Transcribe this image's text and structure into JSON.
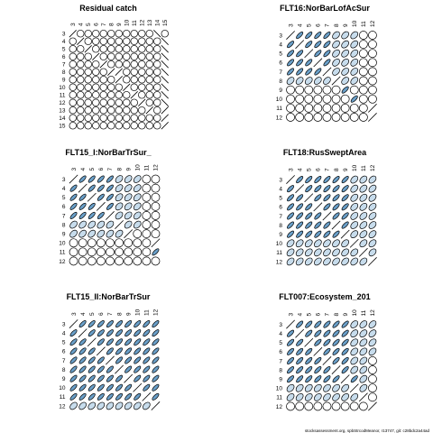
{
  "footer": "stocksassessment.org, spbStrcodMeanor, r13747, git: c28bdc2a44ad",
  "colors": {
    "positive_fill": "#6a9fc8",
    "light_fill": "#c7dcec",
    "empty_fill": "#ffffff",
    "stroke": "#000000"
  },
  "chart_data": [
    {
      "type": "heatmap",
      "title": "Residual catch",
      "categories": [
        "3",
        "4",
        "5",
        "6",
        "7",
        "8",
        "9",
        "10",
        "11",
        "12",
        "13",
        "14",
        "15"
      ],
      "rows": [
        "/..........^.",
        "./..........^",
        "../.........^",
        ".../........^",
        "..../.......^",
        ".....//.....^",
        "....../.....^",
        "......./....^",
        "......../...^",
        "........./..^",
        ".........././",
        "............/",
        "............/"
      ]
    },
    {
      "type": "heatmap",
      "title": "FLT16:NorBarLofAcSur",
      "categories": [
        "3",
        "4",
        "5",
        "6",
        "7",
        "8",
        "9",
        "10",
        "11",
        "12"
      ],
      "rows": [
        "/AAAABBB..",
        "A/AAABBB..",
        "AA/AABBB..",
        "AAA/ABBB..",
        "AAAA/BBB..",
        "BBBBB/BB..",
        "......A...",
        ".......A..",
        "........./",
        "........./"
      ]
    },
    {
      "type": "heatmap",
      "title": "FLT15_I:NorBarTrSur_",
      "categories": [
        "3",
        "4",
        "5",
        "6",
        "7",
        "8",
        "9",
        "10",
        "11",
        "12"
      ],
      "rows": [
        "/AAAABBB..",
        "A/AAABBB..",
        "AA/AABBB..",
        "AAA/ABBB..",
        "AAAA/BBB..",
        "BBBBB/BB..",
        "BBBBBB/...",
        "........./",
        ".........A",
        ".........."
      ]
    },
    {
      "type": "heatmap",
      "title": "FLT18:RusSweptArea",
      "categories": [
        "3",
        "4",
        "5",
        "6",
        "7",
        "8",
        "9",
        "10",
        "11",
        "12"
      ],
      "rows": [
        "/AAAAAABBB",
        "A/AAAAABBB",
        "AA/AAAABBB",
        "AAA/AAABBB",
        "AAAA/AABBB",
        "AAAAA/ABBB",
        "AAAAAA/BBB",
        "BBBBBBB/BB",
        "BBBBBBBB/B",
        "BBBBBBBBB/"
      ]
    },
    {
      "type": "heatmap",
      "title": "FLT15_II:NorBarTrSur",
      "categories": [
        "3",
        "4",
        "5",
        "6",
        "7",
        "8",
        "9",
        "10",
        "11",
        "12"
      ],
      "rows": [
        "/AAAAAAAAA",
        "A/AAAAAAAA",
        "AA/AAAAAAA",
        "AAA/AAAAAA",
        "AAAA/AAAAA",
        "AAAAA/AAAA",
        "AAAAAA/AAA",
        "AAAAAAA/AA",
        "AAAAAAAA/A",
        "BBBBBBBBB/"
      ]
    },
    {
      "type": "heatmap",
      "title": "FLT007:Ecosystem_201",
      "categories": [
        "3",
        "4",
        "5",
        "6",
        "7",
        "8",
        "9",
        "10",
        "11",
        "12"
      ],
      "rows": [
        "/AAAAAABBB",
        "A/AAAAABBB",
        "AA/AAAABBB",
        "AAA/AAABBB",
        "AAAA/AABB.",
        "AAAAA/ABB.",
        "AAAAAA/AB.",
        "BBBBBBB/B.",
        "BBBBBBBB/.",
        "........./"
      ]
    }
  ]
}
